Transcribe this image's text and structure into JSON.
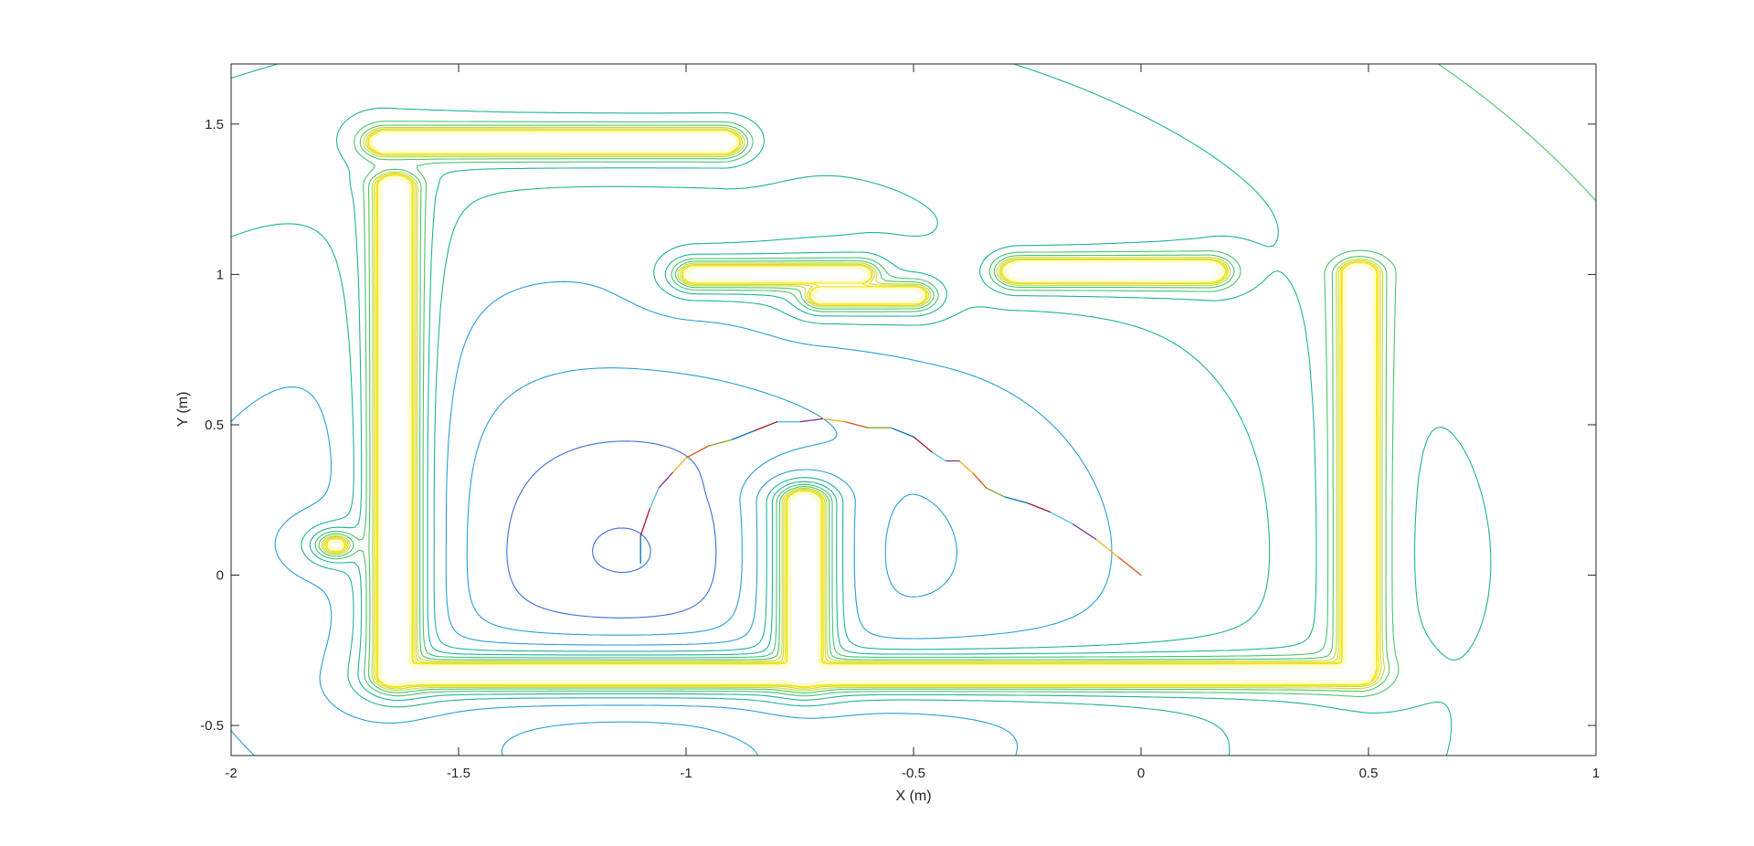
{
  "chart_data": {
    "type": "contour",
    "title": "",
    "xlabel": "X (m)",
    "ylabel": "Y (m)",
    "xlim": [
      -2,
      1
    ],
    "ylim": [
      -0.6,
      1.7
    ],
    "xticks": [
      -2,
      -1.5,
      -1,
      -0.5,
      0,
      0.5,
      1
    ],
    "xtick_labels": [
      "-2",
      "-1.5",
      "-1",
      "-0.5",
      "0",
      "0.5",
      "1"
    ],
    "yticks": [
      -0.5,
      0,
      0.5,
      1,
      1.5
    ],
    "ytick_labels": [
      "-0.5",
      "0",
      "0.5",
      "1",
      "1.5"
    ],
    "grid": false,
    "colormap": [
      "#3a2ec0",
      "#3d6ed8",
      "#2a9fd6",
      "#1fb39a",
      "#4cc56b",
      "#c8d93a",
      "#f5e51b",
      "#fffdd0"
    ],
    "obstacles": [
      {
        "name": "top-bar",
        "x": [
          -1.66,
          -0.92
        ],
        "y": [
          1.44,
          1.44
        ],
        "w": 0.028
      },
      {
        "name": "left-wall",
        "x": [
          -1.64,
          -1.64
        ],
        "y": [
          -0.33,
          1.29
        ],
        "w": 0.03
      },
      {
        "name": "bottom-wall",
        "x": [
          -1.62,
          0.48
        ],
        "y": [
          -0.33,
          -0.33
        ],
        "w": 0.024
      },
      {
        "name": "middle-pillar",
        "x": [
          -0.74,
          -0.74
        ],
        "y": [
          -0.33,
          0.24
        ],
        "w": 0.03
      },
      {
        "name": "right-wall",
        "x": [
          0.48,
          0.48
        ],
        "y": [
          -0.3,
          1.0
        ],
        "w": 0.03
      },
      {
        "name": "upper-bar-left",
        "x": [
          -0.98,
          -0.62
        ],
        "y": [
          1.0,
          1.0
        ],
        "w": 0.018
      },
      {
        "name": "upper-bar-right",
        "x": [
          -0.27,
          0.15
        ],
        "y": [
          1.01,
          1.01
        ],
        "w": 0.026
      },
      {
        "name": "upper-bar-lower",
        "x": [
          -0.7,
          -0.5
        ],
        "y": [
          0.93,
          0.93
        ],
        "w": 0.018
      },
      {
        "name": "small-dot",
        "x": [
          -1.77,
          -1.77
        ],
        "y": [
          0.1,
          0.1
        ],
        "w": 0.012
      }
    ],
    "goal": [
      -1.1,
      0.0
    ],
    "start": [
      0.0,
      0.0
    ],
    "trajectory": {
      "x": [
        0.0,
        -0.05,
        -0.1,
        -0.15,
        -0.2,
        -0.25,
        -0.3,
        -0.34,
        -0.37,
        -0.4,
        -0.43,
        -0.46,
        -0.5,
        -0.55,
        -0.6,
        -0.65,
        -0.7,
        -0.75,
        -0.8,
        -0.85,
        -0.9,
        -0.95,
        -1.0,
        -1.03,
        -1.06,
        -1.08,
        -1.1,
        -1.1
      ],
      "y": [
        0.0,
        0.06,
        0.12,
        0.17,
        0.21,
        0.24,
        0.26,
        0.29,
        0.34,
        0.38,
        0.38,
        0.41,
        0.46,
        0.49,
        0.49,
        0.51,
        0.52,
        0.51,
        0.51,
        0.48,
        0.45,
        0.43,
        0.39,
        0.34,
        0.29,
        0.22,
        0.13,
        0.04
      ]
    }
  }
}
